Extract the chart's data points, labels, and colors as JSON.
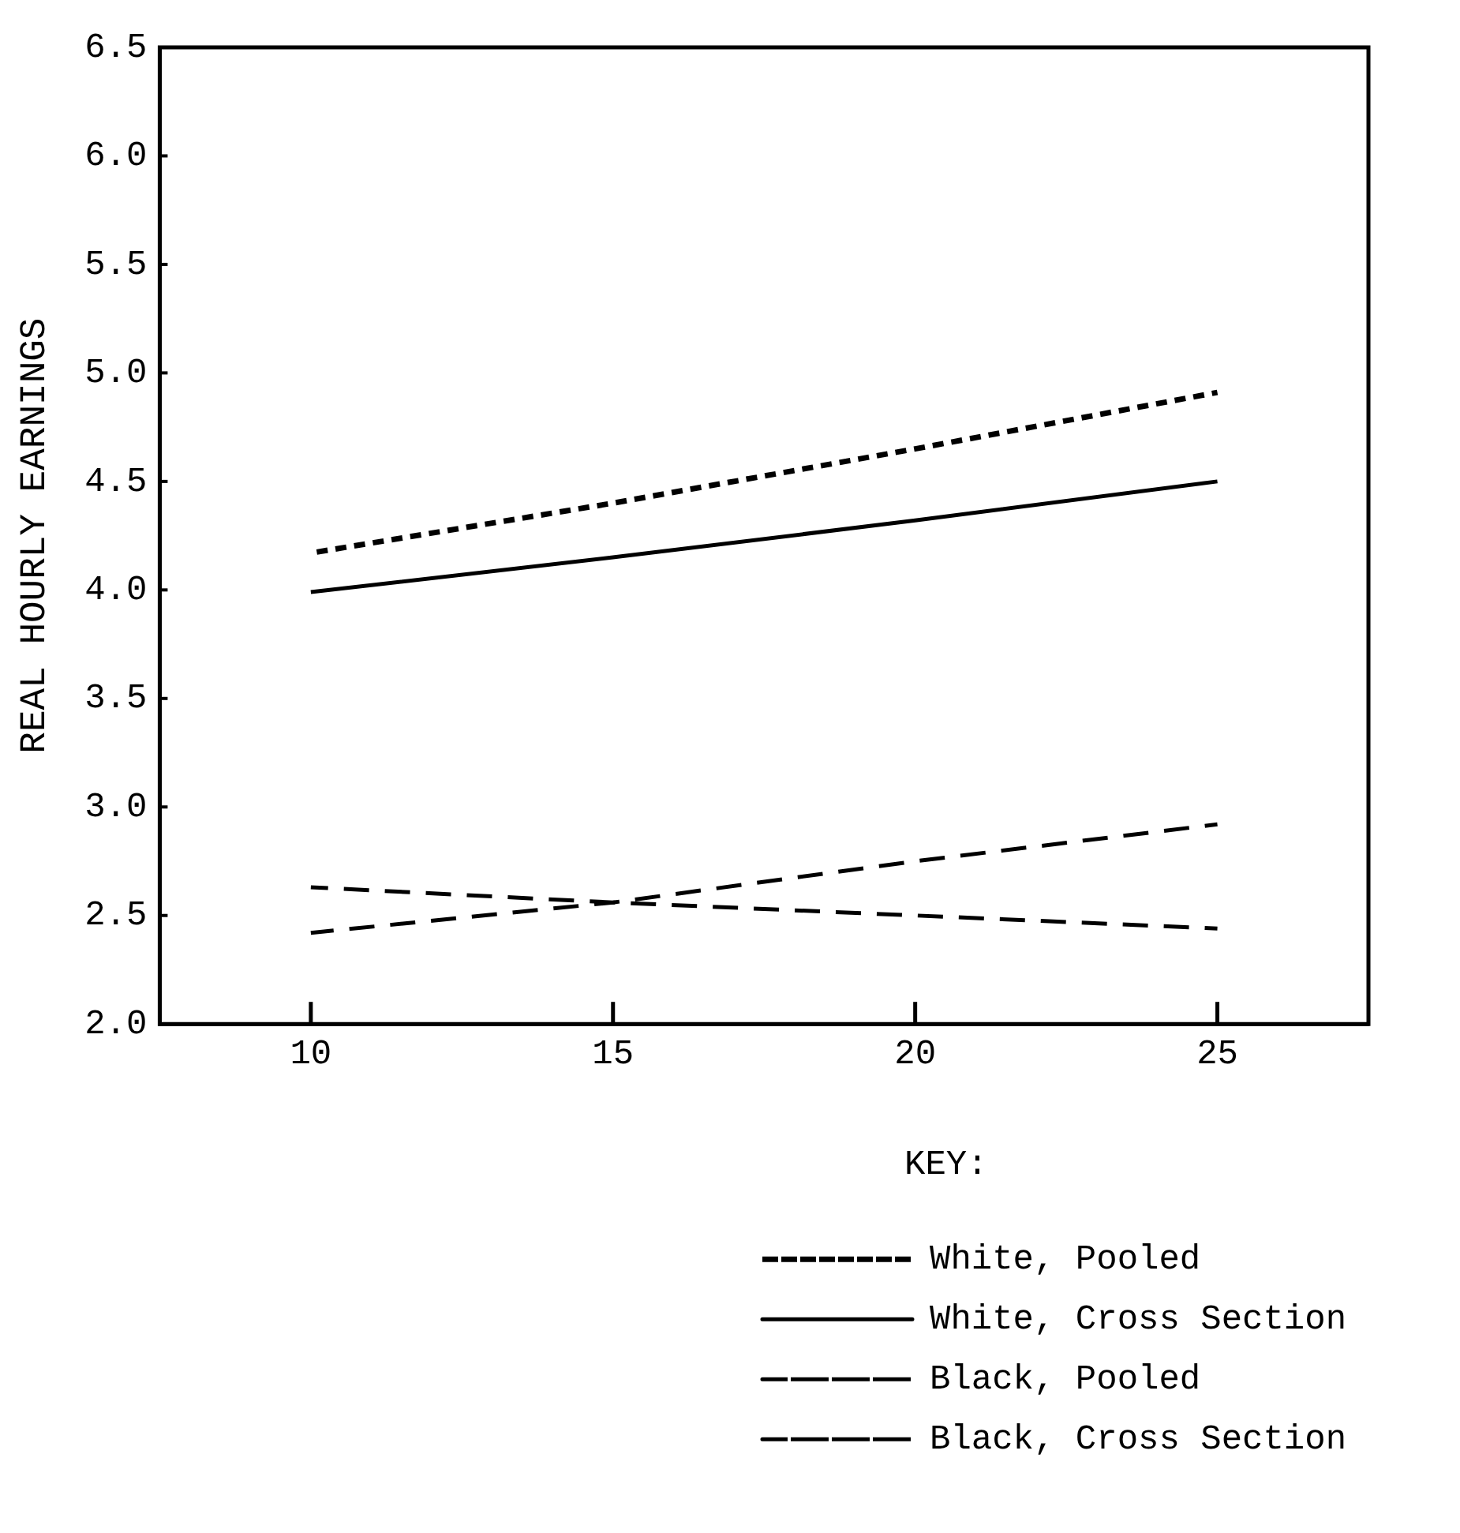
{
  "chart_data": {
    "type": "line",
    "ylabel": "REAL HOURLY EARNINGS",
    "legend_title": "KEY:",
    "legend": "bottom right",
    "grid": false,
    "x": [
      10,
      15,
      20,
      25
    ],
    "xlim": [
      7.5,
      27.5
    ],
    "xticks": [
      10,
      15,
      20,
      25
    ],
    "ylim": [
      2.0,
      6.5
    ],
    "yticks": [
      {
        "value": 2.0,
        "label": "2.0"
      },
      {
        "value": 2.5,
        "label": "2.5"
      },
      {
        "value": 3.0,
        "label": "3.0"
      },
      {
        "value": 3.5,
        "label": "3.5"
      },
      {
        "value": 4.0,
        "label": "4.0"
      },
      {
        "value": 4.5,
        "label": "4.5"
      },
      {
        "value": 5.0,
        "label": "5.0"
      },
      {
        "value": 5.5,
        "label": "5.5"
      },
      {
        "value": 6.0,
        "label": "6.0"
      },
      {
        "value": 6.5,
        "label": "6.5"
      }
    ],
    "marker": "none",
    "series": [
      {
        "name": "White, Pooled",
        "color": "#000000",
        "line_style": "dotted",
        "values": [
          4.17,
          4.4,
          4.65,
          4.91
        ]
      },
      {
        "name": "White, Cross Section",
        "color": "#000000",
        "line_style": "solid",
        "values": [
          3.99,
          4.15,
          4.32,
          4.5
        ]
      },
      {
        "name": "Black, Pooled",
        "color": "#000000",
        "line_style": "dashed",
        "values": [
          2.42,
          2.56,
          2.75,
          2.92
        ]
      },
      {
        "name": "Black, Cross Section",
        "color": "#000000",
        "line_style": "dashed",
        "values": [
          2.63,
          2.56,
          2.5,
          2.44
        ]
      }
    ]
  }
}
